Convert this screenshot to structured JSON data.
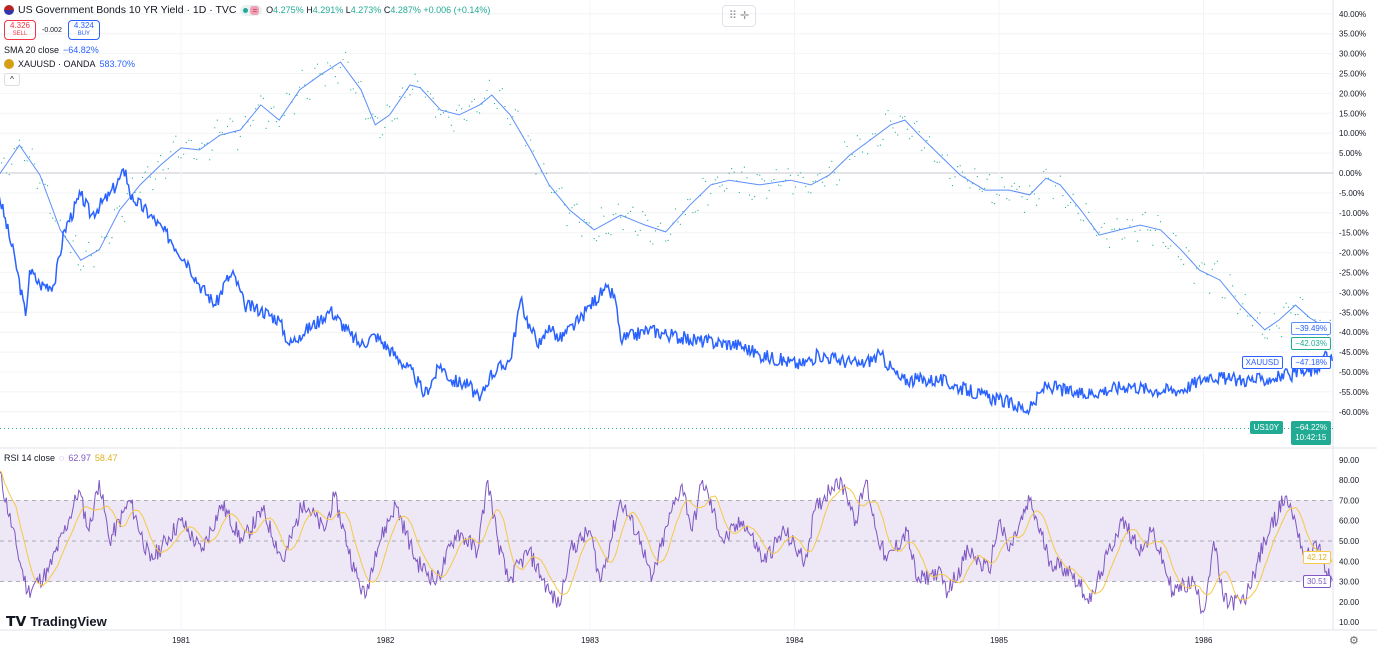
{
  "header": {
    "title": "US Government Bonds 10 YR Yield · 1D · TVC",
    "open_label": "O",
    "open": "4.275%",
    "high_label": "H",
    "high": "4.291%",
    "low_label": "L",
    "low": "4.273%",
    "close_label": "C",
    "close": "4.287%",
    "change": "+0.006 (+0.14%)",
    "eq": "="
  },
  "trade": {
    "sell_price": "4.326",
    "sell_label": "SELL",
    "spread": "-0.002",
    "buy_price": "4.324",
    "buy_label": "BUY"
  },
  "indicators": {
    "sma_label": "SMA 20 close",
    "sma_value": "−64.82%",
    "compare_label": "XAUUSD · OANDA",
    "compare_value": "583.70%",
    "collapse": "^"
  },
  "rsi": {
    "label": "RSI 14 close",
    "value": "62.97",
    "ma_value": "58.47",
    "last_label": "30.51",
    "ma_last_label": "42.12"
  },
  "price_labels": {
    "sma": "−39.49%",
    "price": "−42.03%",
    "xau_tag": "XAUUSD",
    "xau": "−47.18%",
    "us_tag": "US10Y",
    "us": "−64.22%",
    "countdown": "10:42:15"
  },
  "logo": "TradingView",
  "colors": {
    "sma": "#5b8ff9",
    "price_dots": "#22ab94",
    "xau": "#2962ff",
    "rsi": "#7e57c2",
    "rsi_ma": "#f7c948",
    "band": "#ede7f6"
  },
  "chart_data": [
    {
      "type": "line",
      "y_unit": "%",
      "ylim": [
        -65,
        42
      ],
      "yticks": [
        "40.00%",
        "35.00%",
        "30.00%",
        "25.00%",
        "20.00%",
        "15.00%",
        "10.00%",
        "5.00%",
        "0.00%",
        "-5.00%",
        "-10.00%",
        "-15.00%",
        "-20.00%",
        "-25.00%",
        "-30.00%",
        "-35.00%",
        "-40.00%",
        "-45.00%",
        "-50.00%",
        "-55.00%",
        "-60.00%"
      ],
      "xticks": [
        "1981",
        "1982",
        "1983",
        "1984",
        "1985",
        "1986"
      ],
      "series": [
        {
          "name": "SMA 20 close",
          "points": [
            [
              1980.11,
              -0.5
            ],
            [
              1980.21,
              7
            ],
            [
              1980.31,
              -0.5
            ],
            [
              1980.41,
              -14.3
            ],
            [
              1980.51,
              -21.9
            ],
            [
              1980.6,
              -19.3
            ],
            [
              1980.7,
              -9.3
            ],
            [
              1980.8,
              -3
            ],
            [
              1980.9,
              2
            ],
            [
              1981.0,
              6.3
            ],
            [
              1981.09,
              5.8
            ],
            [
              1981.19,
              9.5
            ],
            [
              1981.29,
              10.8
            ],
            [
              1981.39,
              17.1
            ],
            [
              1981.48,
              13.3
            ],
            [
              1981.58,
              20.9
            ],
            [
              1981.68,
              24.6
            ],
            [
              1981.78,
              27.9
            ],
            [
              1981.88,
              20.9
            ],
            [
              1981.95,
              12.1
            ],
            [
              1982.02,
              14.6
            ],
            [
              1982.12,
              22.1
            ],
            [
              1982.17,
              21.4
            ],
            [
              1982.27,
              15.8
            ],
            [
              1982.36,
              14.6
            ],
            [
              1982.46,
              17.1
            ],
            [
              1982.52,
              19.6
            ],
            [
              1982.61,
              14.6
            ],
            [
              1982.71,
              5.8
            ],
            [
              1982.8,
              -3
            ],
            [
              1982.9,
              -9.3
            ],
            [
              1983.02,
              -14.3
            ],
            [
              1983.15,
              -10.6
            ],
            [
              1983.27,
              -13.1
            ],
            [
              1983.37,
              -14.8
            ],
            [
              1983.49,
              -8
            ],
            [
              1983.59,
              -3
            ],
            [
              1983.68,
              -1.8
            ],
            [
              1983.83,
              -3
            ],
            [
              1983.98,
              -1.8
            ],
            [
              1984.08,
              -3
            ],
            [
              1984.17,
              -0.5
            ],
            [
              1984.27,
              4.5
            ],
            [
              1984.37,
              8.3
            ],
            [
              1984.47,
              12.1
            ],
            [
              1984.54,
              13.3
            ],
            [
              1984.61,
              9.5
            ],
            [
              1984.71,
              4.5
            ],
            [
              1984.81,
              -0.5
            ],
            [
              1984.93,
              -4.3
            ],
            [
              1985.05,
              -4.3
            ],
            [
              1985.15,
              -5.5
            ],
            [
              1985.23,
              -1.3
            ],
            [
              1985.3,
              -3
            ],
            [
              1985.4,
              -9.3
            ],
            [
              1985.49,
              -15.6
            ],
            [
              1985.59,
              -14.3
            ],
            [
              1985.69,
              -13.1
            ],
            [
              1985.79,
              -14.3
            ],
            [
              1985.89,
              -19.3
            ],
            [
              1985.98,
              -24.4
            ],
            [
              1986.08,
              -26.9
            ],
            [
              1986.18,
              -33.2
            ],
            [
              1986.3,
              -39.4
            ],
            [
              1986.37,
              -36.9
            ],
            [
              1986.45,
              -33.2
            ],
            [
              1986.52,
              -36.4
            ],
            [
              1986.62,
              -39.5
            ]
          ]
        },
        {
          "name": "XAUUSD · OANDA",
          "points": [
            [
              1980.11,
              -5.5
            ],
            [
              1980.19,
              -22.1
            ],
            [
              1980.24,
              -35.9
            ],
            [
              1980.26,
              -24.4
            ],
            [
              1980.31,
              -28.1
            ],
            [
              1980.38,
              -28.1
            ],
            [
              1980.43,
              -14.3
            ],
            [
              1980.51,
              -5.5
            ],
            [
              1980.56,
              -10.6
            ],
            [
              1980.65,
              -5.5
            ],
            [
              1980.73,
              0.8
            ],
            [
              1980.75,
              -5.5
            ],
            [
              1980.85,
              -10.6
            ],
            [
              1980.95,
              -16.8
            ],
            [
              1981.04,
              -23.1
            ],
            [
              1981.09,
              -28.1
            ],
            [
              1981.17,
              -33.2
            ],
            [
              1981.22,
              -26.9
            ],
            [
              1981.26,
              -25.6
            ],
            [
              1981.31,
              -33.2
            ],
            [
              1981.39,
              -34.4
            ],
            [
              1981.48,
              -36.9
            ],
            [
              1981.53,
              -43.2
            ],
            [
              1981.58,
              -40.7
            ],
            [
              1981.68,
              -36.9
            ],
            [
              1981.73,
              -34.4
            ],
            [
              1981.83,
              -40.7
            ],
            [
              1981.88,
              -43.2
            ],
            [
              1981.95,
              -40.7
            ],
            [
              1982.07,
              -47
            ],
            [
              1982.14,
              -50.8
            ],
            [
              1982.19,
              -55.8
            ],
            [
              1982.27,
              -48.2
            ],
            [
              1982.32,
              -52
            ],
            [
              1982.41,
              -53.3
            ],
            [
              1982.46,
              -57.3
            ],
            [
              1982.51,
              -50.8
            ],
            [
              1982.61,
              -47
            ],
            [
              1982.66,
              -32
            ],
            [
              1982.71,
              -39.4
            ],
            [
              1982.76,
              -43.2
            ],
            [
              1982.8,
              -38.2
            ],
            [
              1982.85,
              -41.9
            ],
            [
              1982.95,
              -36.9
            ],
            [
              1983.0,
              -33.2
            ],
            [
              1983.07,
              -29.4
            ],
            [
              1983.12,
              -30.7
            ],
            [
              1983.15,
              -41.9
            ],
            [
              1983.29,
              -39.4
            ],
            [
              1983.49,
              -41.9
            ],
            [
              1983.73,
              -43.2
            ],
            [
              1983.83,
              -45.7
            ],
            [
              1984.03,
              -48.2
            ],
            [
              1984.12,
              -45.7
            ],
            [
              1984.32,
              -48.2
            ],
            [
              1984.42,
              -45.7
            ],
            [
              1984.52,
              -52
            ],
            [
              1984.71,
              -52
            ],
            [
              1984.91,
              -55.8
            ],
            [
              1985.0,
              -57
            ],
            [
              1985.15,
              -59.6
            ],
            [
              1985.23,
              -53.3
            ],
            [
              1985.4,
              -55.8
            ],
            [
              1985.64,
              -53.3
            ],
            [
              1985.74,
              -54.5
            ],
            [
              1985.89,
              -54.5
            ],
            [
              1986.03,
              -50.8
            ],
            [
              1986.13,
              -52
            ],
            [
              1986.28,
              -52
            ],
            [
              1986.42,
              -50.8
            ],
            [
              1986.55,
              -49.5
            ],
            [
              1986.59,
              -45.7
            ],
            [
              1986.63,
              -47.2
            ]
          ]
        }
      ]
    },
    {
      "type": "line",
      "title": "RSI 14 close",
      "ylim": [
        5,
        95
      ],
      "yticks": [
        "90.00",
        "80.00",
        "70.00",
        "60.00",
        "50.00",
        "40.00",
        "30.00",
        "20.00",
        "10.00"
      ],
      "bands": [
        30,
        50,
        70
      ],
      "series": [
        {
          "name": "RSI",
          "points": [
            [
              1980.11,
              85
            ],
            [
              1980.2,
              45
            ],
            [
              1980.25,
              25
            ],
            [
              1980.35,
              35
            ],
            [
              1980.45,
              60
            ],
            [
              1980.5,
              75
            ],
            [
              1980.55,
              55
            ],
            [
              1980.6,
              80
            ],
            [
              1980.65,
              50
            ],
            [
              1980.75,
              70
            ],
            [
              1980.85,
              40
            ],
            [
              1981.0,
              60
            ],
            [
              1981.1,
              45
            ],
            [
              1981.2,
              68
            ],
            [
              1981.3,
              50
            ],
            [
              1981.4,
              65
            ],
            [
              1981.5,
              40
            ],
            [
              1981.6,
              70
            ],
            [
              1981.7,
              55
            ],
            [
              1981.75,
              72
            ],
            [
              1981.85,
              35
            ],
            [
              1981.9,
              22
            ],
            [
              1981.95,
              45
            ],
            [
              1982.05,
              68
            ],
            [
              1982.15,
              40
            ],
            [
              1982.25,
              30
            ],
            [
              1982.35,
              55
            ],
            [
              1982.45,
              45
            ],
            [
              1982.5,
              80
            ],
            [
              1982.55,
              50
            ],
            [
              1982.6,
              30
            ],
            [
              1982.7,
              45
            ],
            [
              1982.8,
              25
            ],
            [
              1982.85,
              18
            ],
            [
              1982.9,
              45
            ],
            [
              1983.0,
              55
            ],
            [
              1983.05,
              30
            ],
            [
              1983.15,
              70
            ],
            [
              1983.25,
              50
            ],
            [
              1983.3,
              30
            ],
            [
              1983.4,
              65
            ],
            [
              1983.45,
              78
            ],
            [
              1983.5,
              55
            ],
            [
              1983.55,
              80
            ],
            [
              1983.65,
              50
            ],
            [
              1983.75,
              60
            ],
            [
              1983.85,
              40
            ],
            [
              1983.95,
              55
            ],
            [
              1984.05,
              40
            ],
            [
              1984.1,
              65
            ],
            [
              1984.2,
              80
            ],
            [
              1984.25,
              75
            ],
            [
              1984.3,
              60
            ],
            [
              1984.35,
              80
            ],
            [
              1984.4,
              55
            ],
            [
              1984.45,
              40
            ],
            [
              1984.55,
              55
            ],
            [
              1984.6,
              30
            ],
            [
              1984.7,
              35
            ],
            [
              1984.75,
              25
            ],
            [
              1984.85,
              45
            ],
            [
              1984.95,
              35
            ],
            [
              1985.0,
              60
            ],
            [
              1985.05,
              45
            ],
            [
              1985.15,
              70
            ],
            [
              1985.25,
              40
            ],
            [
              1985.35,
              35
            ],
            [
              1985.45,
              20
            ],
            [
              1985.5,
              35
            ],
            [
              1985.6,
              60
            ],
            [
              1985.7,
              45
            ],
            [
              1985.75,
              55
            ],
            [
              1985.85,
              25
            ],
            [
              1985.95,
              30
            ],
            [
              1986.0,
              15
            ],
            [
              1986.05,
              50
            ],
            [
              1986.1,
              20
            ],
            [
              1986.2,
              20
            ],
            [
              1986.3,
              50
            ],
            [
              1986.4,
              72
            ],
            [
              1986.45,
              60
            ],
            [
              1986.5,
              40
            ],
            [
              1986.55,
              50
            ],
            [
              1986.6,
              35
            ],
            [
              1986.63,
              30.5
            ]
          ]
        }
      ]
    }
  ]
}
